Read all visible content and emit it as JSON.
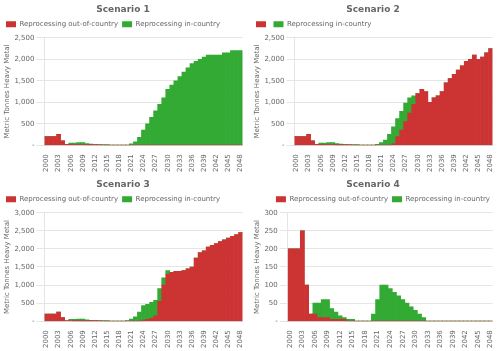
{
  "chart_data": [
    {
      "type": "bar",
      "title": "Scenario 1",
      "ylabel": "Metric Tonnes Heavy Metal",
      "stacked": true,
      "grid": true,
      "legend": "upper left",
      "categories": [
        "2000",
        null,
        null,
        "2003",
        null,
        null,
        "2006",
        null,
        null,
        "2009",
        null,
        null,
        "2012",
        null,
        null,
        "2015",
        null,
        null,
        "2018",
        null,
        null,
        "2021",
        null,
        null,
        "2024",
        null,
        null,
        "2027",
        null,
        null,
        "2030",
        null,
        null,
        "2033",
        null,
        null,
        "2036",
        null,
        null,
        "2039",
        null,
        null,
        "2042",
        null,
        null,
        "2045",
        null,
        null,
        "2048"
      ],
      "series": [
        {
          "name": "Reprocessing out-of-country",
          "color": "#cc3333",
          "values": [
            200,
            200,
            200,
            250,
            100,
            20,
            20,
            10,
            10,
            10,
            5,
            5,
            5,
            5,
            0,
            0,
            0,
            0,
            0,
            0,
            0,
            0,
            0,
            0,
            0,
            0,
            0,
            0,
            0,
            0,
            0,
            0,
            0,
            0,
            0,
            0,
            0,
            0,
            0,
            0,
            0,
            0,
            0,
            0,
            0,
            0,
            0,
            0,
            0
          ]
        },
        {
          "name": "Reprocessing in-country",
          "color": "#33aa33",
          "values": [
            0,
            0,
            0,
            0,
            0,
            0,
            30,
            40,
            50,
            50,
            30,
            20,
            10,
            5,
            5,
            5,
            0,
            0,
            0,
            0,
            0,
            30,
            80,
            180,
            350,
            500,
            650,
            800,
            950,
            1100,
            1300,
            1400,
            1500,
            1600,
            1700,
            1800,
            1900,
            1950,
            2000,
            2050,
            2100,
            2100,
            2100,
            2100,
            2150,
            2150,
            2200,
            2200,
            2200
          ]
        }
      ],
      "ylim": [
        0,
        2500
      ],
      "yticks": [
        {
          "value": 0,
          "label": "-"
        },
        500,
        {
          "value": 1000,
          "label": "1,000"
        },
        {
          "value": 1500,
          "label": "1,500"
        },
        {
          "value": 2000,
          "label": "2,000"
        },
        {
          "value": 2500,
          "label": "2,500"
        }
      ]
    },
    {
      "type": "bar",
      "title": "Scenario 2",
      "ylabel": "Metric Tonnes Heavy Metal",
      "stacked": true,
      "grid": true,
      "legend": "upper left",
      "categories": [
        "2000",
        null,
        null,
        "2003",
        null,
        null,
        "2006",
        null,
        null,
        "2009",
        null,
        null,
        "2012",
        null,
        null,
        "2015",
        null,
        null,
        "2018",
        null,
        null,
        "2021",
        null,
        null,
        "2024",
        null,
        null,
        "2027",
        null,
        null,
        "2030",
        null,
        null,
        "2033",
        null,
        null,
        "2036",
        null,
        null,
        "2039",
        null,
        null,
        "2042",
        null,
        null,
        "2045",
        null,
        null,
        "2048"
      ],
      "series": [
        {
          "color": "#cc3333",
          "values": [
            200,
            200,
            200,
            250,
            100,
            20,
            20,
            10,
            10,
            10,
            5,
            5,
            5,
            5,
            0,
            0,
            0,
            0,
            0,
            0,
            0,
            0,
            0,
            0,
            30,
            200,
            350,
            550,
            750,
            950,
            1200,
            1300,
            1250,
            1000,
            1100,
            1150,
            1250,
            1450,
            1550,
            1650,
            1750,
            1850,
            1950,
            2000,
            2100,
            2000,
            2050,
            2150,
            2250
          ]
        },
        {
          "name": "Reprocessing in-country",
          "color": "#33aa33",
          "values": [
            0,
            0,
            0,
            0,
            0,
            0,
            30,
            40,
            50,
            50,
            30,
            20,
            10,
            5,
            5,
            5,
            0,
            0,
            0,
            0,
            20,
            60,
            120,
            250,
            400,
            420,
            440,
            430,
            350,
            200,
            0,
            0,
            0,
            0,
            0,
            0,
            0,
            0,
            0,
            0,
            0,
            0,
            0,
            0,
            0,
            0,
            0,
            0,
            0
          ]
        }
      ],
      "ylim": [
        0,
        2500
      ],
      "yticks": [
        {
          "value": 0,
          "label": "-"
        },
        500,
        {
          "value": 1000,
          "label": "1,000"
        },
        {
          "value": 1500,
          "label": "1,500"
        },
        {
          "value": 2000,
          "label": "2,000"
        },
        {
          "value": 2500,
          "label": "2,500"
        }
      ]
    },
    {
      "type": "bar",
      "title": "Scenario 3",
      "ylabel": "Metric Tonnes Heavy Metal",
      "stacked": true,
      "grid": true,
      "legend": "upper left",
      "categories": [
        "2000",
        null,
        null,
        "2003",
        null,
        null,
        "2006",
        null,
        null,
        "2009",
        null,
        null,
        "2012",
        null,
        null,
        "2015",
        null,
        null,
        "2018",
        null,
        null,
        "2021",
        null,
        null,
        "2024",
        null,
        null,
        "2027",
        null,
        null,
        "2030",
        null,
        null,
        "2033",
        null,
        null,
        "2036",
        null,
        null,
        "2039",
        null,
        null,
        "2042",
        null,
        null,
        "2045",
        null,
        null,
        "2048"
      ],
      "series": [
        {
          "name": "Reprocessing out-of-country",
          "color": "#cc3333",
          "values": [
            200,
            200,
            200,
            250,
            100,
            20,
            20,
            10,
            10,
            10,
            5,
            5,
            5,
            5,
            0,
            0,
            0,
            0,
            0,
            0,
            0,
            0,
            0,
            0,
            30,
            50,
            80,
            150,
            550,
            1000,
            1300,
            1350,
            1380,
            1380,
            1400,
            1450,
            1500,
            1750,
            1900,
            1950,
            2050,
            2100,
            2150,
            2200,
            2250,
            2300,
            2350,
            2400,
            2450
          ]
        },
        {
          "name": "Reprocessing in-country",
          "color": "#33aa33",
          "values": [
            0,
            0,
            0,
            0,
            0,
            0,
            30,
            40,
            50,
            50,
            30,
            20,
            10,
            5,
            5,
            5,
            0,
            0,
            0,
            0,
            20,
            60,
            120,
            250,
            400,
            420,
            440,
            430,
            350,
            200,
            100,
            0,
            0,
            0,
            0,
            0,
            0,
            0,
            0,
            0,
            0,
            0,
            0,
            0,
            0,
            0,
            0,
            0,
            0
          ]
        }
      ],
      "ylim": [
        0,
        3000
      ],
      "yticks": [
        {
          "value": 0,
          "label": "-"
        },
        500,
        {
          "value": 1000,
          "label": "1,000"
        },
        {
          "value": 1500,
          "label": "1,500"
        },
        {
          "value": 2000,
          "label": "2,000"
        },
        {
          "value": 2500,
          "label": "2,500"
        },
        {
          "value": 3000,
          "label": "3,000"
        }
      ]
    },
    {
      "type": "bar",
      "title": "Scenario 4",
      "ylabel": "Metric Tonnes Heavy Metal",
      "stacked": true,
      "grid": true,
      "legend": "upper right",
      "categories": [
        "2000",
        null,
        null,
        "2003",
        null,
        null,
        "2006",
        null,
        null,
        "2009",
        null,
        null,
        "2012",
        null,
        null,
        "2015",
        null,
        null,
        "2018",
        null,
        null,
        "2021",
        null,
        null,
        "2024",
        null,
        null,
        "2027",
        null,
        null,
        "2030",
        null,
        null,
        "2033",
        null,
        null,
        "2036",
        null,
        null,
        "2039",
        null,
        null,
        "2042",
        null,
        null,
        "2045",
        null,
        null,
        "2048"
      ],
      "series": [
        {
          "name": "Reprocessing out-of-country",
          "color": "#cc3333",
          "values": [
            200,
            200,
            200,
            250,
            100,
            20,
            20,
            10,
            10,
            10,
            5,
            5,
            5,
            5,
            0,
            0,
            0,
            0,
            0,
            0,
            0,
            0,
            0,
            0,
            0,
            0,
            0,
            0,
            0,
            0,
            0,
            0,
            0,
            0,
            0,
            0,
            0,
            0,
            0,
            0,
            0,
            0,
            0,
            0,
            0,
            0,
            0,
            0,
            0
          ]
        },
        {
          "name": "Reprocessing in-country",
          "color": "#33aa33",
          "values": [
            0,
            0,
            0,
            0,
            0,
            0,
            30,
            40,
            50,
            50,
            30,
            20,
            10,
            5,
            5,
            5,
            0,
            0,
            0,
            0,
            20,
            60,
            100,
            100,
            90,
            80,
            70,
            60,
            50,
            40,
            30,
            20,
            10,
            0,
            0,
            0,
            0,
            0,
            0,
            0,
            0,
            0,
            0,
            0,
            0,
            0,
            0,
            0,
            0
          ]
        }
      ],
      "ylim": [
        0,
        300
      ],
      "yticks": [
        {
          "value": 0,
          "label": "-"
        },
        50,
        100,
        150,
        200,
        250,
        300
      ]
    }
  ]
}
